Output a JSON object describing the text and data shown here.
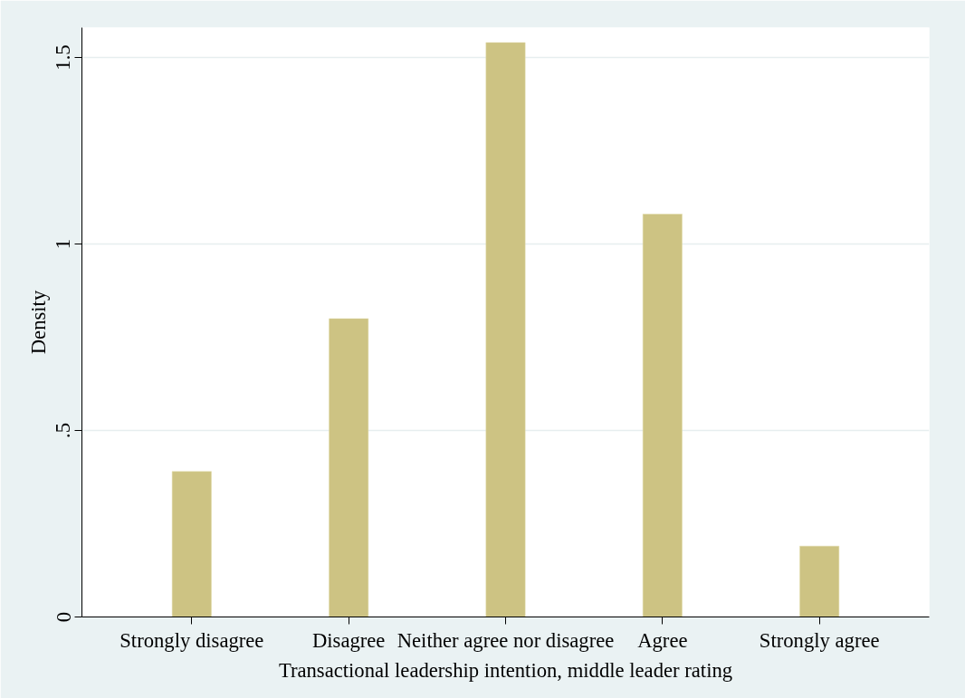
{
  "chart_data": {
    "type": "bar",
    "xlabel": "Transactional leadership intention, middle leader rating",
    "ylabel": "Density",
    "categories": [
      "Strongly disagree",
      "Disagree",
      "Neither agree nor disagree",
      "Agree",
      "Strongly agree"
    ],
    "values": [
      0.39,
      0.8,
      1.54,
      1.08,
      0.19
    ],
    "color": "#cdc383",
    "ylim": [
      0,
      1.58
    ],
    "yticks": [
      {
        "value": 0,
        "label": "0"
      },
      {
        "value": 0.5,
        "label": ".5"
      },
      {
        "value": 1,
        "label": "1"
      },
      {
        "value": 1.5,
        "label": "1.5"
      }
    ],
    "grid": "y"
  }
}
